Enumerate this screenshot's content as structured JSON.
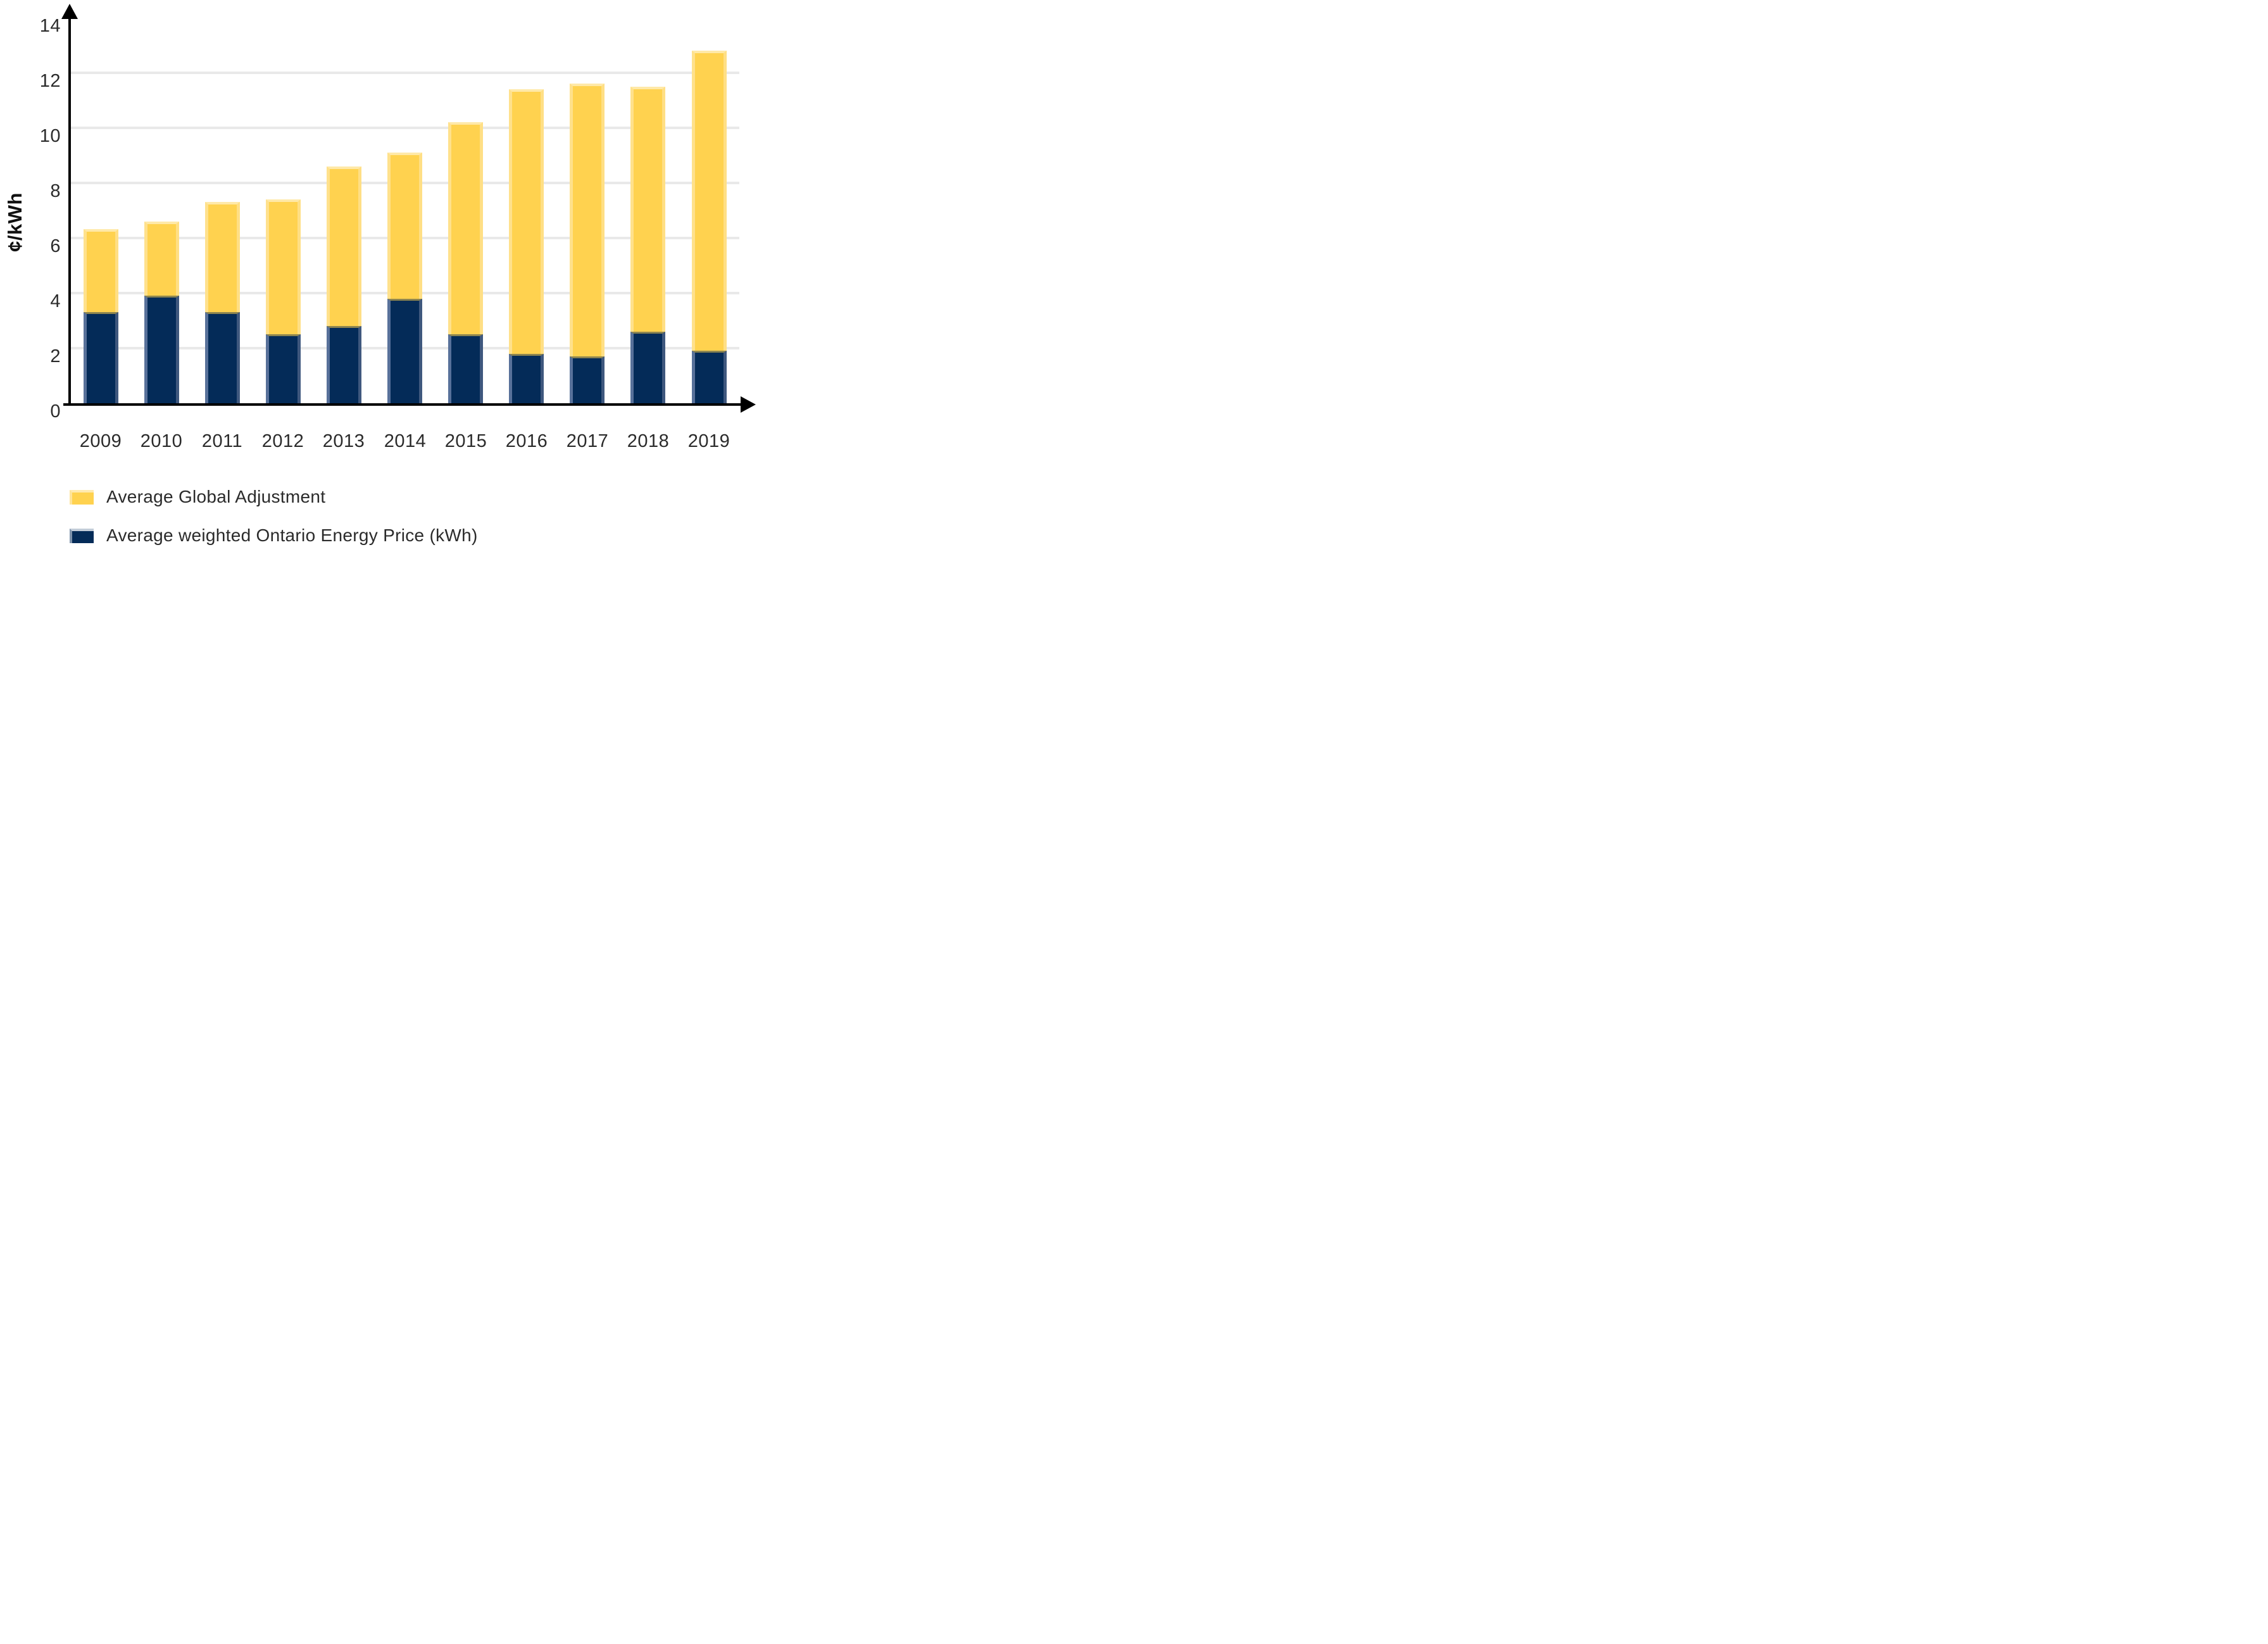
{
  "chart_data": {
    "type": "bar",
    "stacked": true,
    "title": "",
    "xlabel": "",
    "ylabel": "¢/kWh",
    "categories": [
      "2009",
      "2010",
      "2011",
      "2012",
      "2013",
      "2014",
      "2015",
      "2016",
      "2017",
      "2018",
      "2019"
    ],
    "series": [
      {
        "name": "Average weighted Ontario Energy Price (kWh)",
        "color": "#042b58",
        "values": [
          3.3,
          3.9,
          3.3,
          2.5,
          2.8,
          3.8,
          2.5,
          1.8,
          1.7,
          2.6,
          1.9
        ]
      },
      {
        "name": "Average Global Adjustment",
        "color": "#ffd24f",
        "values": [
          3.0,
          2.7,
          4.0,
          4.9,
          5.8,
          5.3,
          7.7,
          9.6,
          9.9,
          8.9,
          10.9
        ]
      }
    ],
    "stack_totals": [
      6.3,
      6.6,
      7.3,
      7.4,
      8.6,
      9.1,
      10.2,
      11.4,
      11.6,
      11.5,
      12.8
    ],
    "ylim": [
      0,
      14
    ],
    "yticks": [
      0,
      2,
      4,
      6,
      8,
      10,
      12,
      14
    ],
    "gridlines_at": [
      2,
      4,
      6,
      8,
      10,
      12
    ],
    "grid": true,
    "axis_arrows": true,
    "legend_position": "bottom-left"
  },
  "legend": {
    "items": [
      {
        "label": "Average Global Adjustment",
        "series_key": "ga",
        "swatch_color": "#ffd24f"
      },
      {
        "label": "Average weighted Ontario Energy Price (kWh)",
        "series_key": "hoep",
        "swatch_color": "#042b58"
      }
    ]
  },
  "colors": {
    "background": "#ffffff",
    "axis": "#000000",
    "gridline": "#e9e9e9",
    "tick_text": "#2b2b2b",
    "global_adjustment_yellow": "#ffd24f",
    "yellow_edge_highlight": "#ffe18c",
    "energy_price_navy": "#042b58",
    "navy_edge_highlight": "#58719a",
    "segment_seam": "#8d8550"
  }
}
